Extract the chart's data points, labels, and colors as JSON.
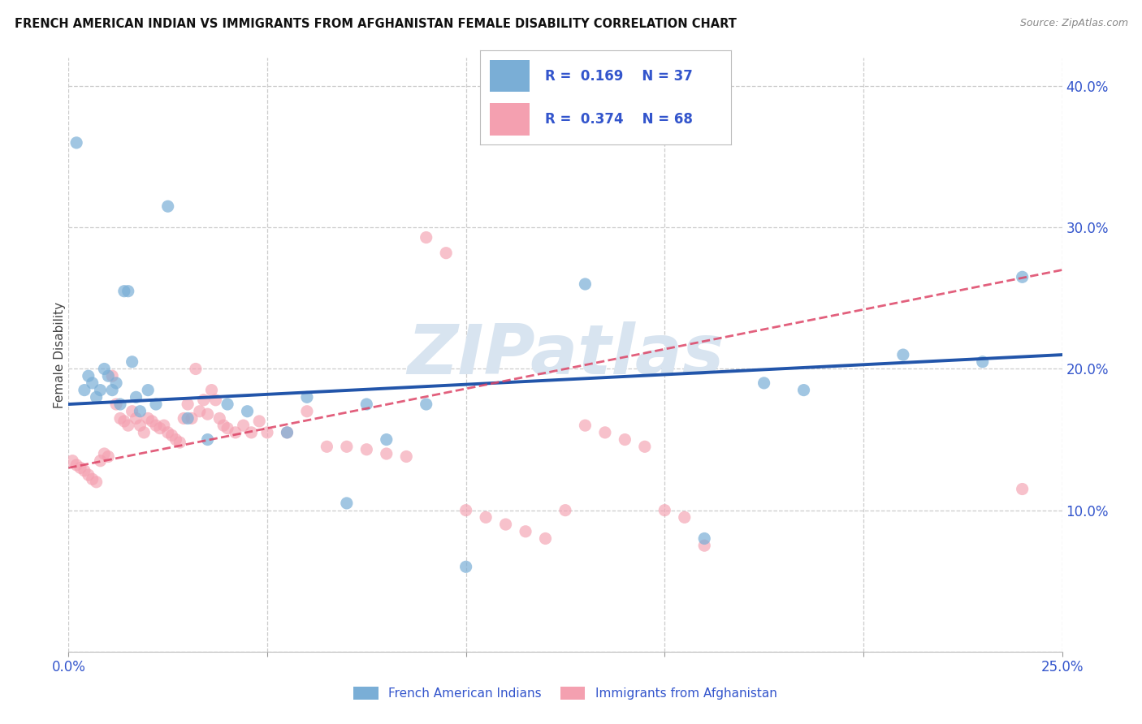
{
  "title": "FRENCH AMERICAN INDIAN VS IMMIGRANTS FROM AFGHANISTAN FEMALE DISABILITY CORRELATION CHART",
  "source": "Source: ZipAtlas.com",
  "ylabel": "Female Disability",
  "xlim": [
    0.0,
    0.25
  ],
  "ylim": [
    0.0,
    0.42
  ],
  "xtick_vals": [
    0.0,
    0.05,
    0.1,
    0.15,
    0.2,
    0.25
  ],
  "xtick_labels": [
    "0.0%",
    "",
    "",
    "",
    "",
    "25.0%"
  ],
  "ytick_vals": [
    0.0,
    0.1,
    0.2,
    0.3,
    0.4
  ],
  "ytick_labels": [
    "",
    "10.0%",
    "20.0%",
    "30.0%",
    "40.0%"
  ],
  "blue_color": "#7aaed6",
  "pink_color": "#f4a0b0",
  "blue_line_color": "#2255aa",
  "pink_line_color": "#dd4466",
  "text_color": "#3355cc",
  "R_blue": 0.169,
  "N_blue": 37,
  "R_pink": 0.374,
  "N_pink": 68,
  "legend_label_blue": "French American Indians",
  "legend_label_pink": "Immigrants from Afghanistan",
  "watermark": "ZIPatlas",
  "blue_trend_x": [
    0.0,
    0.25
  ],
  "blue_trend_y": [
    0.175,
    0.21
  ],
  "pink_trend_x": [
    0.0,
    0.25
  ],
  "pink_trend_y": [
    0.13,
    0.27
  ],
  "blue_x": [
    0.002,
    0.004,
    0.005,
    0.006,
    0.007,
    0.008,
    0.009,
    0.01,
    0.011,
    0.012,
    0.013,
    0.014,
    0.015,
    0.016,
    0.017,
    0.018,
    0.02,
    0.022,
    0.025,
    0.03,
    0.035,
    0.04,
    0.045,
    0.055,
    0.06,
    0.07,
    0.075,
    0.08,
    0.09,
    0.1,
    0.13,
    0.16,
    0.175,
    0.185,
    0.21,
    0.23,
    0.24
  ],
  "blue_y": [
    0.36,
    0.185,
    0.195,
    0.19,
    0.18,
    0.185,
    0.2,
    0.195,
    0.185,
    0.19,
    0.175,
    0.255,
    0.255,
    0.205,
    0.18,
    0.17,
    0.185,
    0.175,
    0.315,
    0.165,
    0.15,
    0.175,
    0.17,
    0.155,
    0.18,
    0.105,
    0.175,
    0.15,
    0.175,
    0.06,
    0.26,
    0.08,
    0.19,
    0.185,
    0.21,
    0.205,
    0.265
  ],
  "pink_x": [
    0.001,
    0.002,
    0.003,
    0.004,
    0.005,
    0.006,
    0.007,
    0.008,
    0.009,
    0.01,
    0.011,
    0.012,
    0.013,
    0.014,
    0.015,
    0.016,
    0.017,
    0.018,
    0.019,
    0.02,
    0.021,
    0.022,
    0.023,
    0.024,
    0.025,
    0.026,
    0.027,
    0.028,
    0.029,
    0.03,
    0.031,
    0.032,
    0.033,
    0.034,
    0.035,
    0.036,
    0.037,
    0.038,
    0.039,
    0.04,
    0.042,
    0.044,
    0.046,
    0.048,
    0.05,
    0.055,
    0.06,
    0.065,
    0.07,
    0.075,
    0.08,
    0.085,
    0.09,
    0.095,
    0.1,
    0.105,
    0.11,
    0.115,
    0.12,
    0.125,
    0.13,
    0.135,
    0.14,
    0.145,
    0.15,
    0.155,
    0.16,
    0.24
  ],
  "pink_y": [
    0.135,
    0.132,
    0.13,
    0.128,
    0.125,
    0.122,
    0.12,
    0.135,
    0.14,
    0.138,
    0.195,
    0.175,
    0.165,
    0.163,
    0.16,
    0.17,
    0.165,
    0.16,
    0.155,
    0.165,
    0.163,
    0.16,
    0.158,
    0.16,
    0.155,
    0.153,
    0.15,
    0.148,
    0.165,
    0.175,
    0.165,
    0.2,
    0.17,
    0.178,
    0.168,
    0.185,
    0.178,
    0.165,
    0.16,
    0.158,
    0.155,
    0.16,
    0.155,
    0.163,
    0.155,
    0.155,
    0.17,
    0.145,
    0.145,
    0.143,
    0.14,
    0.138,
    0.293,
    0.282,
    0.1,
    0.095,
    0.09,
    0.085,
    0.08,
    0.1,
    0.16,
    0.155,
    0.15,
    0.145,
    0.1,
    0.095,
    0.075,
    0.115
  ]
}
